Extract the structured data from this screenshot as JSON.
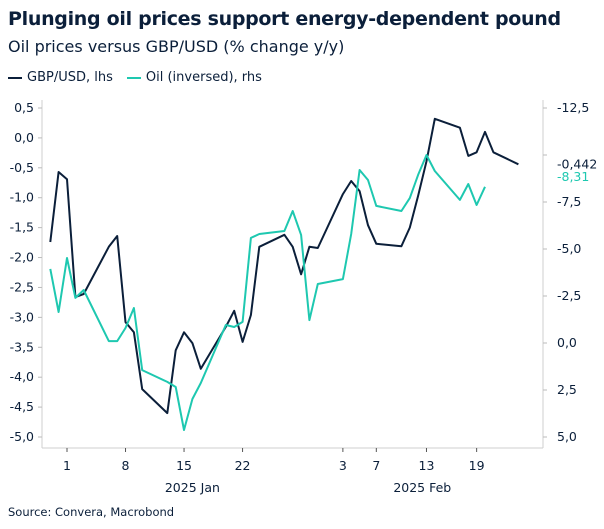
{
  "title": "Plunging oil prices support energy-dependent pound",
  "subtitle": "Oil prices versus GBP/USD (% change y/y)",
  "source": "Source: Convera, Macrobond",
  "colors": {
    "gbp": "#0b1f3a",
    "oil": "#1ec8b0"
  },
  "chart_data": {
    "type": "line",
    "legend_position": "top-left",
    "grid": false,
    "x": [
      "2024-12-30",
      "2024-12-31",
      "2025-01-01",
      "2025-01-02",
      "2025-01-03",
      "2025-01-06",
      "2025-01-07",
      "2025-01-08",
      "2025-01-09",
      "2025-01-10",
      "2025-01-13",
      "2025-01-14",
      "2025-01-15",
      "2025-01-16",
      "2025-01-17",
      "2025-01-20",
      "2025-01-21",
      "2025-01-22",
      "2025-01-23",
      "2025-01-24",
      "2025-01-27",
      "2025-01-28",
      "2025-01-29",
      "2025-01-30",
      "2025-01-31",
      "2025-02-03",
      "2025-02-04",
      "2025-02-05",
      "2025-02-06",
      "2025-02-07",
      "2025-02-10",
      "2025-02-11",
      "2025-02-12",
      "2025-02-13",
      "2025-02-14",
      "2025-02-17",
      "2025-02-18",
      "2025-02-19",
      "2025-02-20",
      "2025-02-21",
      "2025-02-24"
    ],
    "x_ticks": [
      {
        "date": "2025-01-01",
        "label": "1"
      },
      {
        "date": "2025-01-08",
        "label": "8"
      },
      {
        "date": "2025-01-15",
        "label": "15"
      },
      {
        "date": "2025-01-22",
        "label": "22"
      },
      {
        "date": "2025-02-03",
        "label": "3"
      },
      {
        "date": "2025-02-07",
        "label": "7"
      },
      {
        "date": "2025-02-13",
        "label": "13"
      },
      {
        "date": "2025-02-19",
        "label": "19"
      }
    ],
    "x_groups": [
      {
        "label": "2025 Jan",
        "from": "2025-01-01",
        "to": "2025-01-31"
      },
      {
        "label": "2025 Feb",
        "from": "2025-02-01",
        "to": "2025-02-24"
      }
    ],
    "left_axis": {
      "ylim": [
        -5.0,
        0.5
      ],
      "ticks": [
        "0,5",
        "0,0",
        "-0,5",
        "-1,0",
        "-1,5",
        "-2,0",
        "-2,5",
        "-3,0",
        "-3,5",
        "-4,0",
        "-4,5",
        "-5,0"
      ],
      "tick_values": [
        0.5,
        0,
        -0.5,
        -1,
        -1.5,
        -2,
        -2.5,
        -3,
        -3.5,
        -4,
        -4.5,
        -5
      ]
    },
    "right_axis": {
      "ylim": [
        -12.5,
        5.0
      ],
      "inverted": true,
      "ticks": [
        "-12,5",
        "-7,5",
        "-5,0",
        "-2,5",
        "0,0",
        "2,5",
        "5,0"
      ],
      "tick_values": [
        -12.5,
        -7.5,
        -5,
        -2.5,
        0,
        2.5,
        5
      ]
    },
    "series": [
      {
        "name": "GBP/USD, lhs",
        "axis": "left",
        "last_label": "-0,442",
        "values": [
          -1.74,
          -0.57,
          -0.69,
          -2.66,
          -2.61,
          -1.82,
          -1.64,
          -3.08,
          -3.25,
          -4.2,
          -4.6,
          -3.55,
          -3.25,
          -3.43,
          -3.86,
          -3.16,
          -2.89,
          -3.41,
          -2.96,
          -1.82,
          -1.62,
          -1.82,
          -2.28,
          -1.82,
          -1.84,
          -0.94,
          -0.72,
          -0.89,
          -1.46,
          -1.77,
          -1.81,
          -1.5,
          -0.97,
          -0.39,
          0.32,
          0.17,
          -0.3,
          -0.24,
          0.1,
          -0.24,
          -0.442
        ]
      },
      {
        "name": "Oil (inversed), rhs",
        "axis": "right",
        "last_label": "-8,31",
        "values": [
          -3.94,
          -1.65,
          -4.52,
          -2.4,
          -2.82,
          -0.1,
          -0.1,
          -0.8,
          -1.86,
          1.44,
          2.07,
          2.34,
          4.63,
          2.98,
          2.13,
          -0.96,
          -0.85,
          -1.12,
          -5.59,
          -5.8,
          -5.96,
          -7.02,
          -5.75,
          -1.22,
          -3.14,
          -3.4,
          -5.8,
          -9.2,
          -8.67,
          -7.29,
          -7.02,
          -7.71,
          -8.94,
          -10.0,
          -9.15,
          -7.61,
          -8.46,
          -7.34,
          -8.31,
          null,
          null
        ]
      }
    ]
  }
}
